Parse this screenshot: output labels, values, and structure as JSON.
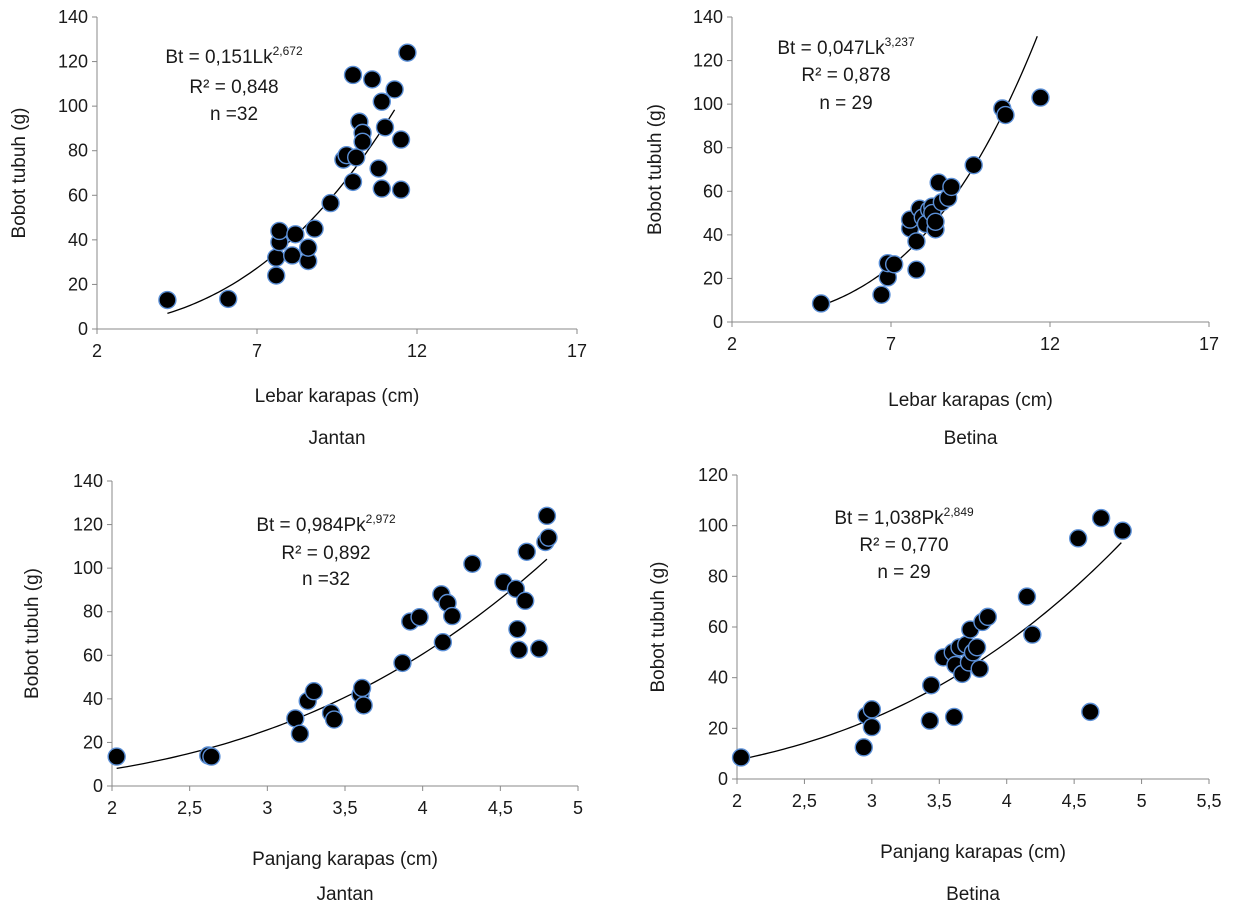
{
  "colors": {
    "marker_fill": "#000000",
    "marker_stroke": "#5b8fd6",
    "axis": "#888888",
    "curve": "#000000",
    "text": "#1a1a1a"
  },
  "chart_data": [
    {
      "type": "scatter",
      "caption": "Jantan",
      "xlabel": "Lebar karapas (cm)",
      "ylabel": "Bobot tubuh  (g)",
      "xlim": [
        2,
        17
      ],
      "ylim": [
        0,
        140
      ],
      "xticks": [
        2,
        7,
        12,
        17
      ],
      "yticks": [
        0,
        20,
        40,
        60,
        80,
        100,
        120,
        140
      ],
      "xtick_labels": [
        "2",
        "7",
        "12",
        "17"
      ],
      "ytick_labels": [
        "0",
        "20",
        "40",
        "60",
        "80",
        "100",
        "120",
        "140"
      ],
      "equation": {
        "lhs": "Bt = 0,151Lk",
        "exp": "2,672",
        "r2": "R² = 0,848",
        "n": "n =32"
      },
      "fit": {
        "a": 0.151,
        "b": 2.672,
        "xrange": [
          4.2,
          11.3
        ]
      },
      "points": [
        [
          4.2,
          13
        ],
        [
          6.1,
          13.5
        ],
        [
          7.6,
          24
        ],
        [
          7.6,
          32
        ],
        [
          7.7,
          39
        ],
        [
          7.7,
          44
        ],
        [
          8.1,
          33
        ],
        [
          8.2,
          42.5
        ],
        [
          8.6,
          30.5
        ],
        [
          8.6,
          36.5
        ],
        [
          8.8,
          45
        ],
        [
          9.3,
          56.5
        ],
        [
          9.7,
          76
        ],
        [
          9.8,
          78
        ],
        [
          10.0,
          66
        ],
        [
          10.0,
          114
        ],
        [
          10.1,
          77
        ],
        [
          10.2,
          93
        ],
        [
          10.3,
          88
        ],
        [
          10.3,
          84
        ],
        [
          10.6,
          112
        ],
        [
          10.8,
          72
        ],
        [
          10.9,
          102
        ],
        [
          10.9,
          63
        ],
        [
          11.0,
          90.5
        ],
        [
          11.3,
          107.5
        ],
        [
          11.5,
          85
        ],
        [
          11.5,
          62.5
        ],
        [
          11.7,
          124
        ]
      ]
    },
    {
      "type": "scatter",
      "caption": "Betina",
      "xlabel": "Lebar karapas  (cm)",
      "ylabel": "Bobot tubuh  (g)",
      "xlim": [
        2,
        17
      ],
      "ylim": [
        0,
        140
      ],
      "xticks": [
        2,
        7,
        12,
        17
      ],
      "yticks": [
        0,
        20,
        40,
        60,
        80,
        100,
        120,
        140
      ],
      "xtick_labels": [
        "2",
        "7",
        "12",
        "17"
      ],
      "ytick_labels": [
        "0",
        "20",
        "40",
        "60",
        "80",
        "100",
        "120",
        "140"
      ],
      "equation": {
        "lhs": "Bt = 0,047Lk",
        "exp": "3,237",
        "r2": "R² = 0,878",
        "n": "n = 29"
      },
      "fit": {
        "a": 0.047,
        "b": 3.237,
        "xrange": [
          4.8,
          11.6
        ]
      },
      "points": [
        [
          4.8,
          8.5
        ],
        [
          6.7,
          12.5
        ],
        [
          6.9,
          20.5
        ],
        [
          6.9,
          27
        ],
        [
          7.1,
          26.5
        ],
        [
          7.6,
          43
        ],
        [
          7.6,
          47
        ],
        [
          7.8,
          24
        ],
        [
          7.8,
          37
        ],
        [
          7.9,
          52
        ],
        [
          8.0,
          48
        ],
        [
          8.1,
          45
        ],
        [
          8.2,
          51.5
        ],
        [
          8.3,
          53
        ],
        [
          8.3,
          50
        ],
        [
          8.4,
          42.5
        ],
        [
          8.4,
          46
        ],
        [
          8.5,
          64
        ],
        [
          8.6,
          55
        ],
        [
          8.8,
          57
        ],
        [
          8.9,
          62
        ],
        [
          9.6,
          72
        ],
        [
          10.5,
          98
        ],
        [
          10.6,
          95
        ],
        [
          11.7,
          103
        ]
      ]
    },
    {
      "type": "scatter",
      "caption": "Jantan",
      "xlabel": "Panjang karapas (cm)",
      "ylabel": "Bobot tubuh  (g)",
      "xlim": [
        2,
        5
      ],
      "ylim": [
        0,
        140
      ],
      "xticks": [
        2,
        2.5,
        3,
        3.5,
        4,
        4.5,
        5
      ],
      "yticks": [
        0,
        20,
        40,
        60,
        80,
        100,
        120,
        140
      ],
      "xtick_labels": [
        "2",
        "2,5",
        "3",
        "3,5",
        "4",
        "4,5",
        "5"
      ],
      "ytick_labels": [
        "0",
        "20",
        "40",
        "60",
        "80",
        "100",
        "120",
        "140"
      ],
      "equation": {
        "lhs": "Bt = 0,984Pk",
        "exp": "2,972",
        "r2": "R² = 0,892",
        "n": "n =32"
      },
      "fit": {
        "a": 0.984,
        "b": 2.972,
        "xrange": [
          2.03,
          4.8
        ]
      },
      "points": [
        [
          2.03,
          13.5
        ],
        [
          2.62,
          14
        ],
        [
          2.64,
          13.5
        ],
        [
          3.18,
          31
        ],
        [
          3.21,
          24
        ],
        [
          3.26,
          39
        ],
        [
          3.3,
          43.5
        ],
        [
          3.41,
          33.5
        ],
        [
          3.43,
          30.5
        ],
        [
          3.6,
          42
        ],
        [
          3.61,
          45
        ],
        [
          3.62,
          37
        ],
        [
          3.87,
          56.5
        ],
        [
          3.92,
          75.5
        ],
        [
          3.98,
          77.5
        ],
        [
          4.12,
          88
        ],
        [
          4.13,
          66
        ],
        [
          4.16,
          84
        ],
        [
          4.19,
          78
        ],
        [
          4.32,
          102
        ],
        [
          4.52,
          93.5
        ],
        [
          4.6,
          90.5
        ],
        [
          4.61,
          72
        ],
        [
          4.62,
          62.5
        ],
        [
          4.66,
          85
        ],
        [
          4.67,
          107.5
        ],
        [
          4.75,
          63
        ],
        [
          4.79,
          112
        ],
        [
          4.8,
          124
        ],
        [
          4.81,
          114
        ]
      ]
    },
    {
      "type": "scatter",
      "caption": "Betina",
      "xlabel": "Panjang karapas (cm)",
      "ylabel": "Bobot  tubuh  (g)",
      "xlim": [
        2,
        5.5
      ],
      "ylim": [
        0,
        120
      ],
      "xticks": [
        2,
        2.5,
        3,
        3.5,
        4,
        4.5,
        5,
        5.5
      ],
      "yticks": [
        0,
        20,
        40,
        60,
        80,
        100,
        120
      ],
      "xtick_labels": [
        "2",
        "2,5",
        "3",
        "3,5",
        "4",
        "4,5",
        "5",
        "5,5"
      ],
      "ytick_labels": [
        "0",
        "20",
        "40",
        "60",
        "80",
        "100",
        "120"
      ],
      "equation": {
        "lhs": "Bt = 1,038Pk",
        "exp": "2,849",
        "r2": "R² = 0,770",
        "n": "n = 29"
      },
      "fit": {
        "a": 1.038,
        "b": 2.849,
        "xrange": [
          2.03,
          4.85
        ]
      },
      "points": [
        [
          2.03,
          8.5
        ],
        [
          2.94,
          12.5
        ],
        [
          2.96,
          25
        ],
        [
          3.0,
          20.5
        ],
        [
          3.0,
          27.5
        ],
        [
          3.43,
          23
        ],
        [
          3.44,
          37
        ],
        [
          3.53,
          48
        ],
        [
          3.6,
          50
        ],
        [
          3.61,
          24.5
        ],
        [
          3.62,
          45
        ],
        [
          3.65,
          52
        ],
        [
          3.67,
          41.5
        ],
        [
          3.7,
          53
        ],
        [
          3.72,
          46
        ],
        [
          3.73,
          59
        ],
        [
          3.75,
          50
        ],
        [
          3.78,
          52
        ],
        [
          3.8,
          43.5
        ],
        [
          3.82,
          62
        ],
        [
          3.86,
          64
        ],
        [
          4.15,
          72
        ],
        [
          4.19,
          57
        ],
        [
          4.53,
          95
        ],
        [
          4.62,
          26.5
        ],
        [
          4.7,
          103
        ],
        [
          4.86,
          98
        ]
      ]
    }
  ]
}
